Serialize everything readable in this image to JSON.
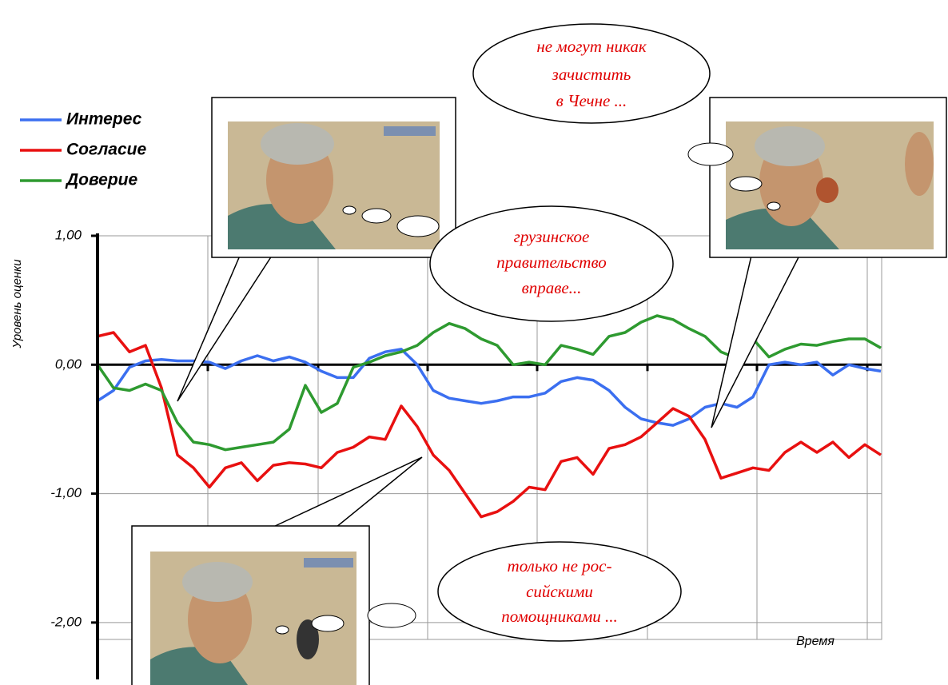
{
  "chart_data": {
    "type": "line",
    "y_label": "Уровень оценки",
    "x_label": "Время",
    "categories": [
      null,
      null,
      null,
      null,
      null,
      null,
      null,
      null,
      null,
      null,
      null,
      null,
      null,
      null,
      null,
      null,
      null,
      null,
      null,
      null,
      null,
      null,
      null,
      null,
      null,
      null,
      null,
      null,
      null,
      null,
      null,
      null,
      null,
      null,
      null,
      null,
      null,
      null,
      null,
      null,
      null,
      null,
      null,
      null,
      null,
      null,
      null,
      null,
      null,
      null
    ],
    "series": [
      {
        "name": "Интерес",
        "color": "#3b6ff0",
        "values": [
          -0.28,
          -0.2,
          -0.02,
          0.03,
          0.04,
          0.03,
          0.03,
          0.02,
          -0.03,
          0.03,
          0.07,
          0.03,
          0.06,
          0.02,
          -0.05,
          -0.1,
          -0.1,
          0.05,
          0.1,
          0.12,
          0.0,
          -0.2,
          -0.26,
          -0.28,
          -0.3,
          -0.28,
          -0.25,
          -0.25,
          -0.22,
          -0.13,
          -0.1,
          -0.12,
          -0.2,
          -0.33,
          -0.42,
          -0.45,
          -0.47,
          -0.42,
          -0.33,
          -0.3,
          -0.33,
          -0.25,
          0.0,
          0.02,
          0.0,
          0.02,
          -0.08,
          0.0,
          -0.03,
          -0.05
        ]
      },
      {
        "name": "Согласие",
        "color": "#e81010",
        "values": [
          0.22,
          0.25,
          0.1,
          0.15,
          -0.18,
          -0.7,
          -0.8,
          -0.95,
          -0.8,
          -0.76,
          -0.9,
          -0.78,
          -0.76,
          -0.77,
          -0.8,
          -0.68,
          -0.64,
          -0.56,
          -0.58,
          -0.32,
          -0.48,
          -0.7,
          -0.82,
          -1.0,
          -1.18,
          -1.14,
          -1.06,
          -0.95,
          -0.97,
          -0.75,
          -0.72,
          -0.85,
          -0.65,
          -0.62,
          -0.56,
          -0.45,
          -0.34,
          -0.4,
          -0.58,
          -0.88,
          -0.84,
          -0.8,
          -0.82,
          -0.68,
          -0.6,
          -0.68,
          -0.6,
          -0.72,
          -0.62,
          -0.7
        ]
      },
      {
        "name": "Доверие",
        "color": "#2e9a30",
        "values": [
          0.0,
          -0.18,
          -0.2,
          -0.15,
          -0.2,
          -0.45,
          -0.6,
          -0.62,
          -0.66,
          -0.64,
          -0.62,
          -0.6,
          -0.5,
          -0.16,
          -0.37,
          -0.3,
          -0.02,
          0.02,
          0.07,
          0.1,
          0.15,
          0.25,
          0.32,
          0.28,
          0.2,
          0.15,
          0.0,
          0.02,
          0.0,
          0.15,
          0.12,
          0.08,
          0.22,
          0.25,
          0.33,
          0.38,
          0.35,
          0.28,
          0.22,
          0.1,
          0.05,
          0.2,
          0.06,
          0.12,
          0.16,
          0.15,
          0.18,
          0.2,
          0.2,
          0.13
        ]
      }
    ],
    "ylim": [
      -2.1,
      1
    ],
    "yticks": [
      {
        "value": 1,
        "label": "1,00"
      },
      {
        "value": 0,
        "label": "0,00"
      },
      {
        "value": -1,
        "label": "-1,00"
      },
      {
        "value": -2,
        "label": "-2,00"
      }
    ],
    "grid": true,
    "legend": "top-left",
    "annotations": [
      {
        "lines": [
          "не могут никак",
          "зачистить",
          "в Чечне ..."
        ]
      },
      {
        "lines": [
          "грузинское",
          "правительство",
          "вправе..."
        ]
      },
      {
        "lines": [
          "только не рос-",
          "сийскими",
          "помощниками ..."
        ]
      }
    ]
  }
}
